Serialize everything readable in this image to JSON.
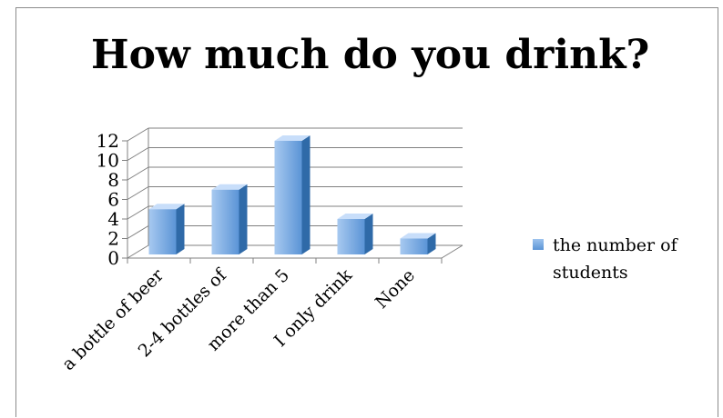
{
  "chart_data": {
    "type": "bar",
    "title": "How much do you drink?",
    "categories": [
      "a bottle of beer",
      "2-4 bottles of",
      "more than 5",
      "I only drink",
      "None"
    ],
    "series": [
      {
        "name": "the number of students",
        "values": [
          5,
          7,
          12,
          4,
          2
        ]
      }
    ],
    "yticks": [
      "0",
      "2",
      "4",
      "6",
      "8",
      "10",
      "12"
    ],
    "ylim": [
      0,
      12
    ],
    "grid": true,
    "legend_position": "right",
    "colors": {
      "bar_front_top": "#a7c9f0",
      "bar_front_bottom": "#5b94d6",
      "bar_side": "#2f6aa8",
      "bar_top": "#c8defa",
      "grid": "#808080"
    }
  }
}
